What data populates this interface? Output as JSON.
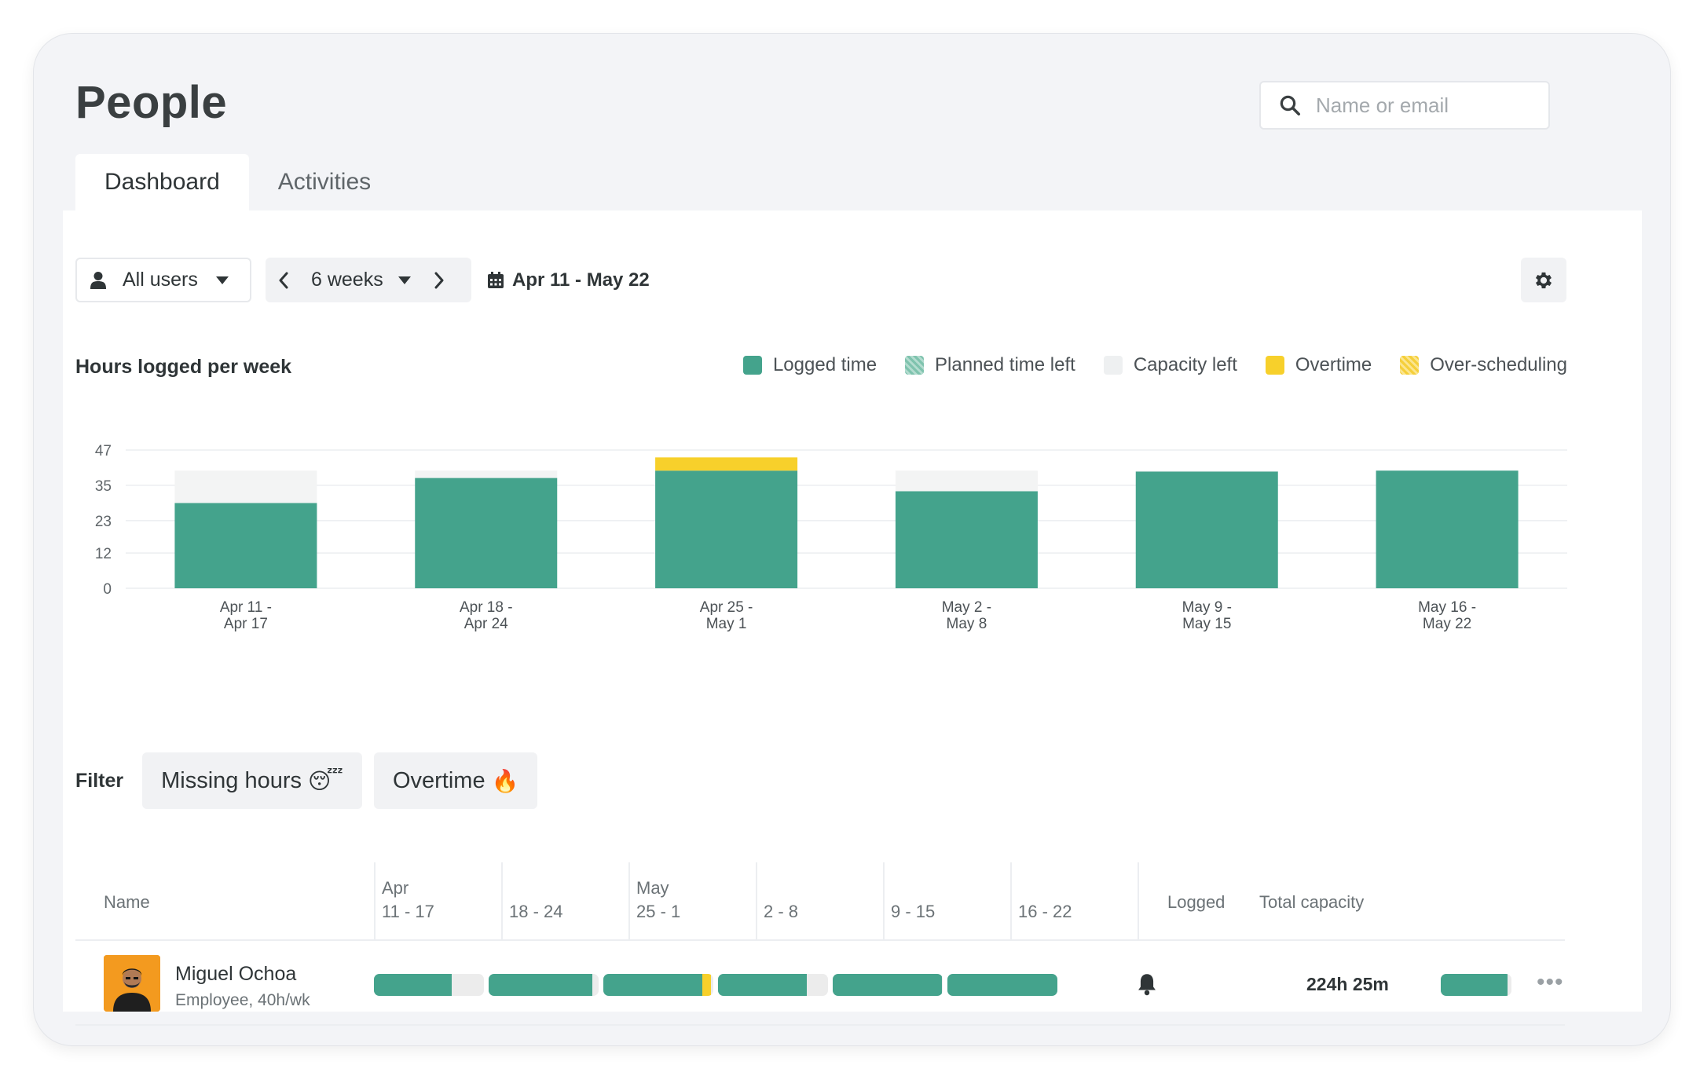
{
  "header": {
    "title": "People",
    "search_placeholder": "Name or email"
  },
  "tabs": [
    {
      "label": "Dashboard",
      "active": true
    },
    {
      "label": "Activities",
      "active": false
    }
  ],
  "controls": {
    "users_filter": "All users",
    "range_select": "6 weeks",
    "date_range": "Apr 11 - May 22"
  },
  "chart": {
    "title": "Hours logged per week",
    "legend": [
      {
        "label": "Logged time",
        "color": "#44a38c"
      },
      {
        "label": "Planned time left",
        "color": "#9fd2c3"
      },
      {
        "label": "Capacity left",
        "color": "#eef0f1"
      },
      {
        "label": "Overtime",
        "color": "#f7d02b"
      },
      {
        "label": "Over-scheduling",
        "color": "#f9df74"
      }
    ]
  },
  "chart_data": {
    "type": "bar",
    "title": "Hours logged per week",
    "xlabel": "",
    "ylabel": "",
    "ylim": [
      0,
      47
    ],
    "yticks": [
      0,
      12,
      23,
      35,
      47
    ],
    "categories": [
      [
        "Apr 11 -",
        "Apr 17"
      ],
      [
        "Apr 18 -",
        "Apr 24"
      ],
      [
        "Apr 25 -",
        "May 1"
      ],
      [
        "May 2 -",
        "May 8"
      ],
      [
        "May 9 -",
        "May 15"
      ],
      [
        "May 16 -",
        "May 22"
      ]
    ],
    "series": [
      {
        "name": "Logged time",
        "color": "#44a38c",
        "values": [
          29,
          37.5,
          40,
          33,
          39.7,
          40
        ]
      },
      {
        "name": "Capacity left",
        "color": "#f3f4f4",
        "values": [
          11,
          2.5,
          0,
          7,
          0.3,
          0
        ]
      },
      {
        "name": "Overtime",
        "color": "#f7d02b",
        "values": [
          0,
          0,
          4.5,
          0,
          0,
          0
        ]
      }
    ]
  },
  "filter": {
    "label": "Filter",
    "chips": [
      {
        "label": "Missing hours",
        "emoji": "😴"
      },
      {
        "label": "Overtime",
        "emoji": "🔥"
      }
    ]
  },
  "table": {
    "col_name": "Name",
    "weeks": [
      {
        "top": "Apr",
        "bottom": "11 - 17"
      },
      {
        "top": "",
        "bottom": "18 - 24"
      },
      {
        "top": "May",
        "bottom": "25 - 1"
      },
      {
        "top": "",
        "bottom": "2 - 8"
      },
      {
        "top": "",
        "bottom": "9 - 15"
      },
      {
        "top": "",
        "bottom": "16 - 22"
      }
    ],
    "col_logged": "Logged",
    "col_capacity": "Total capacity",
    "rows": [
      {
        "name": "Miguel Ochoa",
        "role": "Employee, 40h/wk",
        "week_fill": [
          0.71,
          0.94,
          0.9,
          0.81,
          0.99,
          1.0
        ],
        "week_overtime": [
          0,
          0,
          0.08,
          0,
          0,
          0
        ],
        "logged": "224h 25m",
        "capacity_fill": 0.94
      }
    ]
  }
}
